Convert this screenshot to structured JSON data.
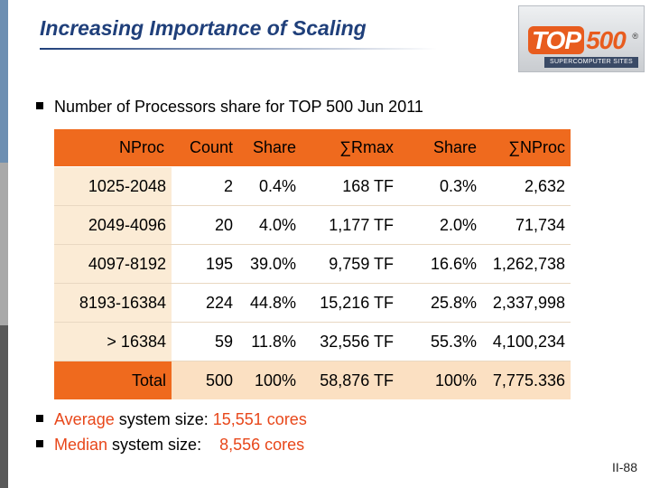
{
  "title": "Increasing Importance of Scaling",
  "logo": {
    "top": "TOP",
    "num": "500",
    "reg": "®",
    "sub": "SUPERCOMPUTER SITES"
  },
  "intro_bullet": "Number of Processors share for TOP 500 Jun 2011",
  "table": {
    "headers": [
      "NProc",
      "Count",
      "Share",
      "∑Rmax",
      "Share",
      "∑NProc"
    ],
    "rows": [
      [
        "1025-2048",
        "2",
        "0.4%",
        "168 TF",
        "0.3%",
        "2,632"
      ],
      [
        "2049-4096",
        "20",
        "4.0%",
        "1,177 TF",
        "2.0%",
        "71,734"
      ],
      [
        "4097-8192",
        "195",
        "39.0%",
        "9,759 TF",
        "16.6%",
        "1,262,738"
      ],
      [
        "8193-16384",
        "224",
        "44.8%",
        "15,216 TF",
        "25.8%",
        "2,337,998"
      ],
      [
        "> 16384",
        "59",
        "11.8%",
        "32,556 TF",
        "55.3%",
        "4,100,234"
      ],
      [
        "Total",
        "500",
        "100%",
        "58,876 TF",
        "100%",
        "7,775.336"
      ]
    ]
  },
  "bullets": [
    {
      "label": "Average",
      "rest": " system size: ",
      "value": "15,551 cores"
    },
    {
      "label": "Median",
      "rest": " system size:    ",
      "value": "8,556 cores"
    }
  ],
  "page_number": "II-88",
  "colors": {
    "title": "#1f3f7a",
    "header": "#ef6a1e",
    "row": "#fbebd5",
    "accent": "#e8471a"
  }
}
